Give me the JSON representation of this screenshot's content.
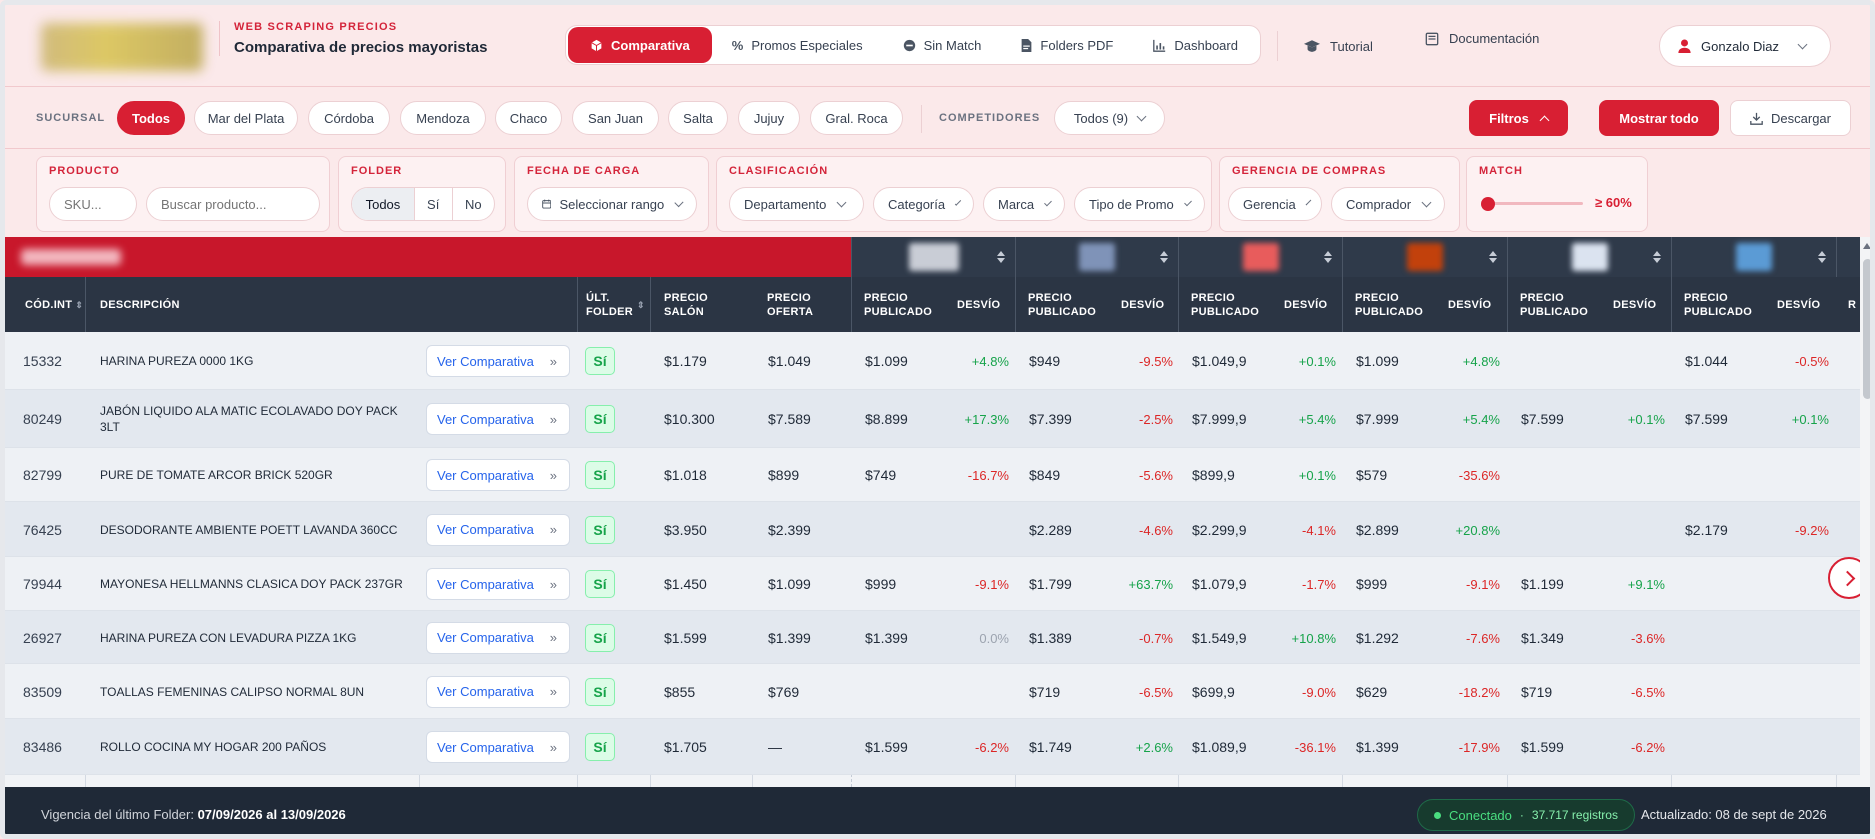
{
  "header": {
    "kicker": "WEB SCRAPING PRECIOS",
    "subtitle": "Comparativa de precios mayoristas",
    "nav": [
      {
        "label": "Comparativa",
        "icon": "cube-icon",
        "active": true
      },
      {
        "label": "Promos Especiales",
        "icon": "percent-icon"
      },
      {
        "label": "Sin Match",
        "icon": "minus-circle-icon"
      },
      {
        "label": "Folders PDF",
        "icon": "file-pdf-icon"
      },
      {
        "label": "Dashboard",
        "icon": "chart-icon"
      }
    ],
    "tutorial": "Tutorial",
    "documentacion": "Documentación",
    "user": "Gonzalo Diaz"
  },
  "sucursal": {
    "label": "SUCURSAL",
    "items": [
      "Todos",
      "Mar del Plata",
      "Córdoba",
      "Mendoza",
      "Chaco",
      "San Juan",
      "Salta",
      "Jujuy",
      "Gral. Roca"
    ],
    "competidores_label": "COMPETIDORES",
    "competidores_value": "Todos (9)",
    "filtros": "Filtros",
    "mostrar_todo": "Mostrar todo",
    "descargar": "Descargar"
  },
  "filters": {
    "producto": {
      "title": "PRODUCTO",
      "sku_placeholder": "SKU...",
      "search_placeholder": "Buscar producto..."
    },
    "folder": {
      "title": "FOLDER",
      "options": [
        "Todos",
        "Sí",
        "No"
      ]
    },
    "fecha": {
      "title": "FECHA DE CARGA",
      "value": "Seleccionar rango"
    },
    "clasificacion": {
      "title": "CLASIFICACIÓN",
      "departamento": "Departamento",
      "categoria": "Categoría",
      "marca": "Marca",
      "tipo_promo": "Tipo de Promo"
    },
    "gerencia": {
      "title": "GERENCIA DE COMPRAS",
      "gerencia": "Gerencia",
      "comprador": "Comprador"
    },
    "match": {
      "title": "MATCH",
      "value": "≥ 60%",
      "level": 0.0
    }
  },
  "table": {
    "headers": {
      "cod": "CÓD.INT",
      "desc": "DESCRIPCIÓN",
      "folder1": "ÚLT.",
      "folder2": "FOLDER",
      "salon1": "PRECIO",
      "salon2": "SALÓN",
      "oferta1": "PRECIO",
      "oferta2": "OFERTA",
      "pub1": "PRECIO",
      "pub2": "PUBLICADO",
      "desvio": "DESVÍO",
      "partial": "R"
    },
    "ver_label": "Ver Comparativa",
    "si_label": "Sí",
    "rows": [
      {
        "cod": "15332",
        "desc": "HARINA PUREZA 0000 1KG",
        "salon": "$1.179",
        "oferta": "$1.049",
        "c": [
          [
            "$1.099",
            "+4.8%"
          ],
          [
            "$949",
            "-9.5%"
          ],
          [
            "$1.049,9",
            "+0.1%"
          ],
          [
            "$1.099",
            "+4.8%"
          ],
          [
            "",
            ""
          ],
          [
            "$1.044",
            "-0.5%"
          ]
        ]
      },
      {
        "cod": "80249",
        "desc": "JABÓN LIQUIDO ALA MATIC ECOLAVADO DOY PACK 3LT",
        "salon": "$10.300",
        "oferta": "$7.589",
        "c": [
          [
            "$8.899",
            "+17.3%"
          ],
          [
            "$7.399",
            "-2.5%"
          ],
          [
            "$7.999,9",
            "+5.4%"
          ],
          [
            "$7.999",
            "+5.4%"
          ],
          [
            "$7.599",
            "+0.1%"
          ],
          [
            "$7.599",
            "+0.1%"
          ]
        ]
      },
      {
        "cod": "82799",
        "desc": "PURE DE TOMATE ARCOR BRICK 520GR",
        "salon": "$1.018",
        "oferta": "$899",
        "c": [
          [
            "$749",
            "-16.7%"
          ],
          [
            "$849",
            "-5.6%"
          ],
          [
            "$899,9",
            "+0.1%"
          ],
          [
            "$579",
            "-35.6%"
          ],
          [
            "",
            ""
          ],
          [
            "",
            ""
          ]
        ]
      },
      {
        "cod": "76425",
        "desc": "DESODORANTE AMBIENTE POETT LAVANDA 360CC",
        "salon": "$3.950",
        "oferta": "$2.399",
        "c": [
          [
            "",
            ""
          ],
          [
            "$2.289",
            "-4.6%"
          ],
          [
            "$2.299,9",
            "-4.1%"
          ],
          [
            "$2.899",
            "+20.8%"
          ],
          [
            "",
            ""
          ],
          [
            "$2.179",
            "-9.2%"
          ]
        ]
      },
      {
        "cod": "79944",
        "desc": "MAYONESA HELLMANNS CLASICA DOY PACK 237GR",
        "salon": "$1.450",
        "oferta": "$1.099",
        "c": [
          [
            "$999",
            "-9.1%"
          ],
          [
            "$1.799",
            "+63.7%"
          ],
          [
            "$1.079,9",
            "-1.7%"
          ],
          [
            "$999",
            "-9.1%"
          ],
          [
            "$1.199",
            "+9.1%"
          ],
          [
            "",
            ""
          ]
        ]
      },
      {
        "cod": "26927",
        "desc": "HARINA PUREZA CON LEVADURA PIZZA 1KG",
        "salon": "$1.599",
        "oferta": "$1.399",
        "c": [
          [
            "$1.399",
            "0.0%"
          ],
          [
            "$1.389",
            "-0.7%"
          ],
          [
            "$1.549,9",
            "+10.8%"
          ],
          [
            "$1.292",
            "-7.6%"
          ],
          [
            "$1.349",
            "-3.6%"
          ],
          [
            "",
            ""
          ]
        ]
      },
      {
        "cod": "83509",
        "desc": "TOALLAS FEMENINAS CALIPSO NORMAL 8UN",
        "salon": "$855",
        "oferta": "$769",
        "c": [
          [
            "",
            ""
          ],
          [
            "$719",
            "-6.5%"
          ],
          [
            "$699,9",
            "-9.0%"
          ],
          [
            "$629",
            "-18.2%"
          ],
          [
            "$719",
            "-6.5%"
          ],
          [
            "",
            ""
          ]
        ]
      },
      {
        "cod": "83486",
        "desc": "ROLLO COCINA MY HOGAR 200 PAÑOS",
        "salon": "$1.705",
        "oferta": "—",
        "c": [
          [
            "$1.599",
            "-6.2%"
          ],
          [
            "$1.749",
            "+2.6%"
          ],
          [
            "$1.089,9",
            "-36.1%"
          ],
          [
            "$1.399",
            "-17.9%"
          ],
          [
            "$1.599",
            "-6.2%"
          ],
          [
            "",
            ""
          ]
        ]
      }
    ]
  },
  "footer": {
    "vigencia_label": "Vigencia del último Folder:",
    "vigencia_value": "07/09/2026 al 13/09/2026",
    "conectado": "Conectado",
    "registros": "37.717 registros",
    "actualizado": "Actualizado: 08 de sept de 2026"
  },
  "colors": {
    "accent": "#d81f33",
    "positive": "#16a34a",
    "negative": "#dc2626",
    "header_dark": "#2b3544"
  }
}
